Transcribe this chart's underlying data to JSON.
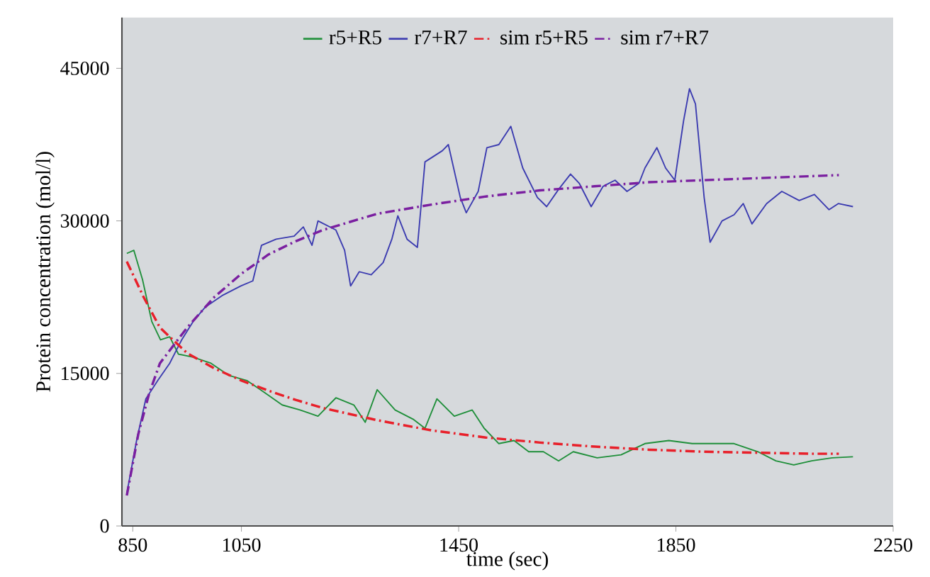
{
  "chart_data": {
    "type": "line",
    "xlabel": "time (sec)",
    "ylabel": "Protein concentration (mol/l)",
    "xlim": [
      830,
      2250
    ],
    "xticks": [
      850,
      1050,
      1450,
      1850,
      2250
    ],
    "ylim": [
      0,
      50000
    ],
    "yticks": [
      0,
      15000,
      30000,
      45000
    ],
    "legend": "top",
    "grid": false,
    "series": [
      {
        "name": "r5+R5",
        "color": "#1f8f3a",
        "line_style": "solid",
        "x": [
          839,
          852,
          868,
          885,
          901,
          918,
          934,
          961,
          994,
          1027,
          1060,
          1093,
          1125,
          1158,
          1191,
          1224,
          1257,
          1278,
          1300,
          1333,
          1366,
          1388,
          1410,
          1442,
          1475,
          1497,
          1524,
          1552,
          1579,
          1606,
          1634,
          1661,
          1705,
          1749,
          1793,
          1837,
          1880,
          1924,
          1957,
          2001,
          2034,
          2067,
          2100,
          2138,
          2176
        ],
        "values": [
          26800,
          27100,
          24200,
          20100,
          18300,
          18600,
          16900,
          16600,
          16000,
          14800,
          14300,
          13100,
          11900,
          11400,
          10800,
          12600,
          11900,
          10200,
          13400,
          11400,
          10500,
          9600,
          12500,
          10800,
          11400,
          9600,
          8100,
          8400,
          7300,
          7300,
          6400,
          7300,
          6700,
          7000,
          8100,
          8400,
          8100,
          8100,
          8100,
          7300,
          6400,
          6000,
          6400,
          6700,
          6800
        ]
      },
      {
        "name": "r7+R7",
        "color": "#3b3bb0",
        "line_style": "solid",
        "x": [
          839,
          857,
          874,
          896,
          918,
          940,
          961,
          983,
          1016,
          1049,
          1071,
          1087,
          1114,
          1147,
          1164,
          1180,
          1191,
          1224,
          1240,
          1251,
          1267,
          1289,
          1311,
          1327,
          1338,
          1355,
          1374,
          1388,
          1420,
          1431,
          1453,
          1464,
          1486,
          1502,
          1524,
          1546,
          1568,
          1595,
          1612,
          1634,
          1656,
          1672,
          1694,
          1716,
          1738,
          1760,
          1782,
          1793,
          1815,
          1831,
          1848,
          1864,
          1875,
          1886,
          1902,
          1913,
          1935,
          1957,
          1974,
          1990,
          2017,
          2045,
          2077,
          2105,
          2132,
          2149,
          2176
        ],
        "values": [
          3200,
          8400,
          12500,
          14300,
          16000,
          18300,
          20100,
          21500,
          22700,
          23600,
          24100,
          27600,
          28200,
          28500,
          29400,
          27600,
          30000,
          29100,
          27100,
          23600,
          25000,
          24700,
          25900,
          28200,
          30500,
          28200,
          27400,
          35800,
          36900,
          37500,
          32300,
          30800,
          32900,
          37200,
          37500,
          39300,
          35200,
          32300,
          31400,
          33100,
          34600,
          33700,
          31400,
          33400,
          34000,
          32900,
          33700,
          35200,
          37200,
          35200,
          34000,
          39800,
          43000,
          41500,
          32300,
          27900,
          30000,
          30600,
          31700,
          29700,
          31700,
          32900,
          32000,
          32600,
          31100,
          31700,
          31400
        ]
      },
      {
        "name": "sim r5+R5",
        "color": "#e8202a",
        "line_style": "dashed",
        "x": [
          839,
          870,
          900,
          950,
          1000,
          1050,
          1100,
          1150,
          1200,
          1300,
          1400,
          1500,
          1600,
          1700,
          1800,
          1900,
          2000,
          2100,
          2150
        ],
        "values": [
          26000,
          22500,
          19500,
          17000,
          15500,
          14300,
          13300,
          12400,
          11600,
          10400,
          9400,
          8700,
          8200,
          7800,
          7500,
          7300,
          7200,
          7100,
          7100
        ]
      },
      {
        "name": "sim r7+R7",
        "color": "#7a1fa0",
        "line_style": "dashed",
        "x": [
          839,
          860,
          880,
          900,
          950,
          1000,
          1050,
          1100,
          1150,
          1200,
          1300,
          1400,
          1500,
          1600,
          1700,
          1800,
          1900,
          2000,
          2100,
          2150
        ],
        "values": [
          3000,
          9000,
          13000,
          16000,
          19500,
          22500,
          24800,
          26700,
          28000,
          29100,
          30700,
          31600,
          32400,
          33000,
          33400,
          33800,
          34000,
          34200,
          34400,
          34500
        ]
      }
    ]
  }
}
